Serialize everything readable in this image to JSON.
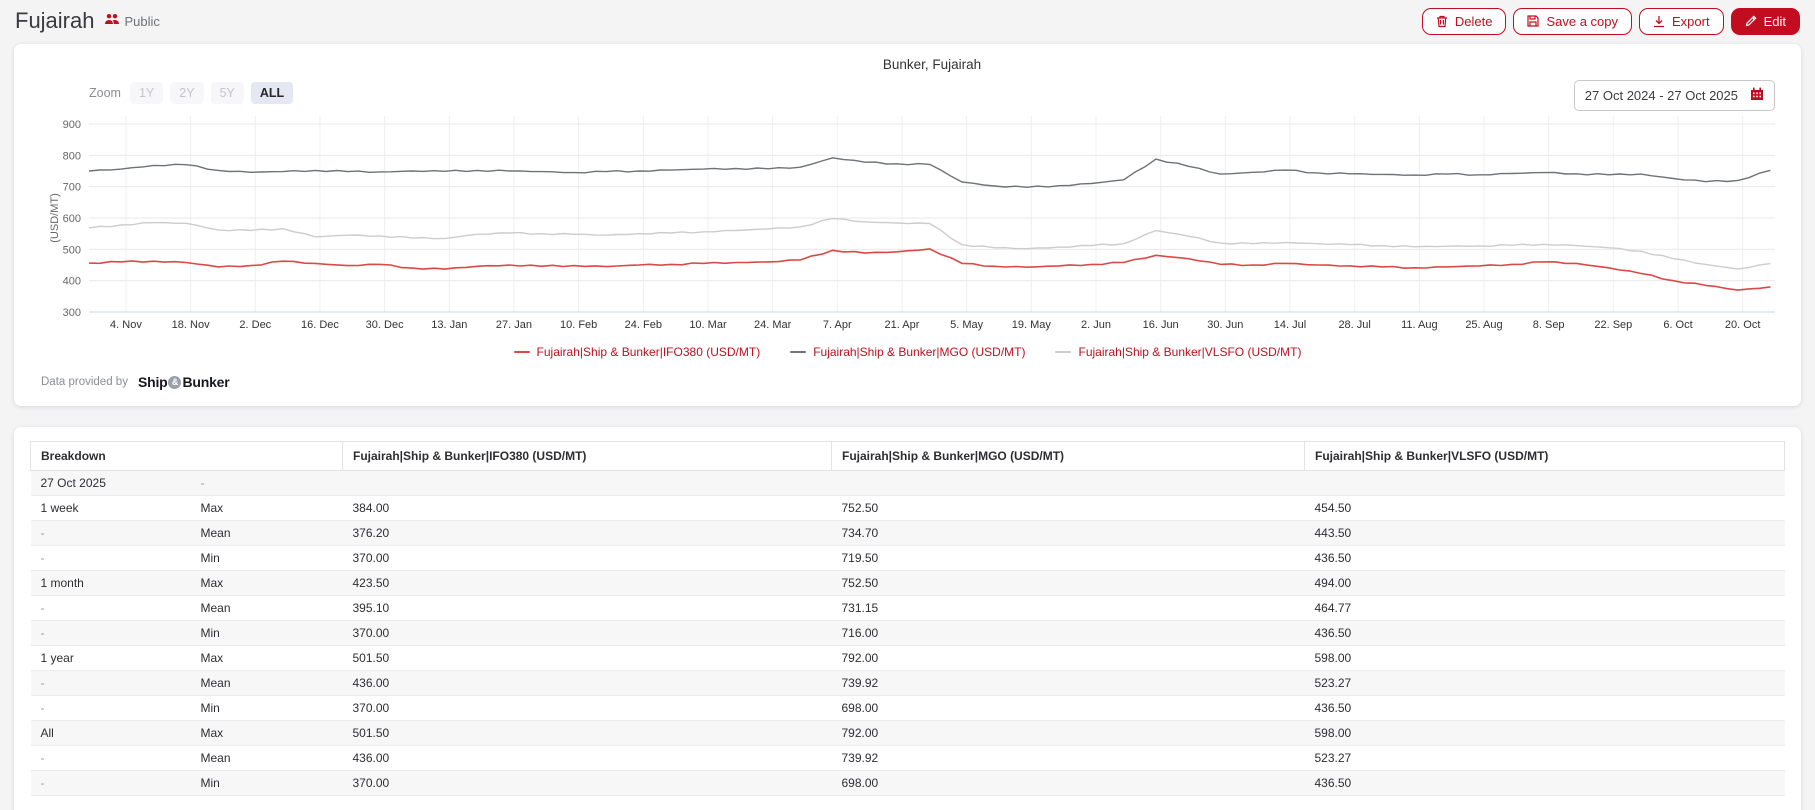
{
  "colors": {
    "accent": "#c20d20",
    "legend_text": "#c00f1f",
    "row_stripe": "#f7f7f8"
  },
  "header": {
    "title": "Fujairah",
    "visibility": "Public",
    "buttons": {
      "delete": "Delete",
      "save_copy": "Save a copy",
      "export": "Export",
      "edit": "Edit"
    }
  },
  "chart": {
    "title": "Bunker, Fujairah",
    "zoom_label": "Zoom",
    "zoom_options": [
      {
        "label": "1Y",
        "active": false
      },
      {
        "label": "2Y",
        "active": false
      },
      {
        "label": "5Y",
        "active": false
      },
      {
        "label": "ALL",
        "active": true
      }
    ],
    "date_range": "27 Oct 2024 - 27 Oct 2025",
    "provided_label": "Data provided by",
    "logo": {
      "part1": "Ship",
      "amp": "&",
      "part2": "Bunker"
    }
  },
  "chart_data": {
    "type": "line",
    "title": "Bunker, Fujairah",
    "ylabel": "(USD/MT)",
    "ylim": [
      300,
      900
    ],
    "y_ticks": [
      300,
      400,
      500,
      600,
      700,
      800,
      900
    ],
    "grid": true,
    "legend_position": "bottom",
    "x_range_days": 365,
    "x_start": "27 Oct 2024",
    "x_end": "27 Oct 2025",
    "sample_interval_days": 7,
    "x_tick_days": [
      8,
      22,
      36,
      50,
      64,
      78,
      92,
      106,
      120,
      134,
      148,
      162,
      176,
      190,
      204,
      218,
      232,
      246,
      260,
      274,
      288,
      302,
      316,
      330,
      344,
      358
    ],
    "x_tick_labels": [
      "4. Nov",
      "18. Nov",
      "2. Dec",
      "16. Dec",
      "30. Dec",
      "13. Jan",
      "27. Jan",
      "10. Feb",
      "24. Feb",
      "10. Mar",
      "24. Mar",
      "7. Apr",
      "21. Apr",
      "5. May",
      "19. May",
      "2. Jun",
      "16. Jun",
      "30. Jun",
      "14. Jul",
      "28. Jul",
      "11. Aug",
      "25. Aug",
      "8. Sep",
      "22. Sep",
      "6. Oct",
      "20. Oct"
    ],
    "series": [
      {
        "name": "Fujairah|Ship & Bunker|IFO380 (USD/MT)",
        "color": "#d94a47",
        "values": [
          456,
          460,
          462,
          458,
          444,
          448,
          462,
          455,
          448,
          452,
          440,
          437,
          446,
          450,
          446,
          448,
          445,
          450,
          452,
          455,
          458,
          460,
          466,
          497,
          488,
          492,
          501.5,
          455,
          446,
          443,
          447,
          452,
          458,
          481,
          470,
          452,
          450,
          455,
          450,
          447,
          444,
          441,
          444,
          447,
          452,
          460,
          455,
          441,
          423,
          400,
          385,
          370,
          380
        ]
      },
      {
        "name": "Fujairah|Ship & Bunker|MGO (USD/MT)",
        "color": "#6d7276",
        "values": [
          750,
          756,
          768,
          770,
          752,
          746,
          748,
          752,
          748,
          747,
          750,
          749,
          752,
          750,
          748,
          745,
          748,
          750,
          753,
          756,
          758,
          757,
          762,
          792,
          778,
          773,
          771,
          715,
          702,
          698,
          703,
          710,
          722,
          788,
          765,
          740,
          746,
          753,
          744,
          741,
          739,
          737,
          740,
          738,
          742,
          745,
          741,
          738,
          740,
          726,
          716,
          720,
          752
        ]
      },
      {
        "name": "Fujairah|Ship & Bunker|VLSFO (USD/MT)",
        "color": "#cccccc",
        "values": [
          568,
          578,
          585,
          583,
          562,
          560,
          566,
          540,
          545,
          543,
          536,
          535,
          548,
          552,
          550,
          548,
          545,
          550,
          552,
          556,
          560,
          565,
          572,
          598,
          588,
          584,
          582,
          515,
          505,
          502,
          507,
          512,
          518,
          560,
          542,
          520,
          518,
          522,
          518,
          515,
          512,
          508,
          510,
          511,
          513,
          516,
          512,
          505,
          494,
          470,
          452,
          437,
          454.5
        ]
      }
    ]
  },
  "table": {
    "columns": [
      "Breakdown",
      "Fujairah|Ship & Bunker|IFO380 (USD/MT)",
      "Fujairah|Ship & Bunker|MGO (USD/MT)",
      "Fujairah|Ship & Bunker|VLSFO (USD/MT)"
    ],
    "rows": [
      {
        "period": "27 Oct 2025",
        "stat": "-",
        "values": [
          "",
          "",
          ""
        ]
      },
      {
        "period": "1 week",
        "stat": "Max",
        "values": [
          "384.00",
          "752.50",
          "454.50"
        ]
      },
      {
        "period": "-",
        "stat": "Mean",
        "values": [
          "376.20",
          "734.70",
          "443.50"
        ]
      },
      {
        "period": "-",
        "stat": "Min",
        "values": [
          "370.00",
          "719.50",
          "436.50"
        ]
      },
      {
        "period": "1 month",
        "stat": "Max",
        "values": [
          "423.50",
          "752.50",
          "494.00"
        ]
      },
      {
        "period": "-",
        "stat": "Mean",
        "values": [
          "395.10",
          "731.15",
          "464.77"
        ]
      },
      {
        "period": "-",
        "stat": "Min",
        "values": [
          "370.00",
          "716.00",
          "436.50"
        ]
      },
      {
        "period": "1 year",
        "stat": "Max",
        "values": [
          "501.50",
          "792.00",
          "598.00"
        ]
      },
      {
        "period": "-",
        "stat": "Mean",
        "values": [
          "436.00",
          "739.92",
          "523.27"
        ]
      },
      {
        "period": "-",
        "stat": "Min",
        "values": [
          "370.00",
          "698.00",
          "436.50"
        ]
      },
      {
        "period": "All",
        "stat": "Max",
        "values": [
          "501.50",
          "792.00",
          "598.00"
        ]
      },
      {
        "period": "-",
        "stat": "Mean",
        "values": [
          "436.00",
          "739.92",
          "523.27"
        ]
      },
      {
        "period": "-",
        "stat": "Min",
        "values": [
          "370.00",
          "698.00",
          "436.50"
        ]
      }
    ]
  }
}
